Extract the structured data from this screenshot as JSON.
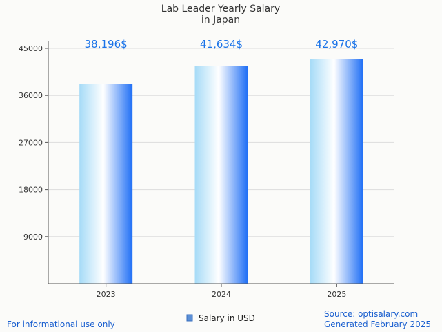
{
  "chart_data": {
    "type": "bar",
    "title": "Lab Leader Yearly Salary",
    "subtitle": "in Japan",
    "categories": [
      "2023",
      "2024",
      "2025"
    ],
    "series": [
      {
        "name": "Salary in USD",
        "values": [
          38196,
          41634,
          42970
        ]
      }
    ],
    "data_labels": [
      "38,196$",
      "41,634$",
      "42,970$"
    ],
    "yticks": [
      9000,
      18000,
      27000,
      36000,
      45000
    ],
    "ylim": [
      0,
      45000
    ],
    "grid": true,
    "legend_position": "bottom-center",
    "colors": {
      "bar_light": "#a6dbf7",
      "bar_mid": "#ffffff",
      "bar_dark": "#1e6ef5",
      "label": "#1a73e8",
      "legend_swatch": "#5b8fd6"
    }
  },
  "footer": {
    "left": "For informational use only",
    "source": "Source: optisalary.com",
    "generated": "Generated February 2025"
  }
}
